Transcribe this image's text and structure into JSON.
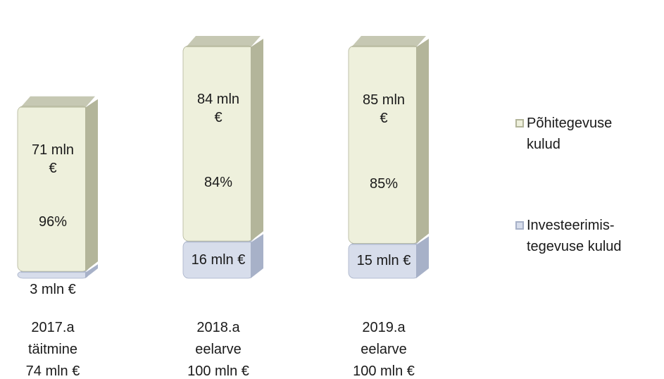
{
  "chart_data": {
    "type": "stacked_bar",
    "categories": [
      [
        "2017.a",
        "täitmine",
        "74 mln €"
      ],
      [
        "2018.a",
        "eelarve",
        "100 mln €"
      ],
      [
        "2019.a",
        "eelarve",
        "100 mln €"
      ]
    ],
    "series": [
      {
        "name": "Põhitegevuse kulud",
        "color": "#eef0dc",
        "side_color": "#b3b59a",
        "values": [
          71,
          84,
          85
        ],
        "value_labels": [
          "71 mln €",
          "84 mln €",
          "85 mln €"
        ],
        "share_labels": [
          "96%",
          "84%",
          "85%"
        ]
      },
      {
        "name": "Investeerimis- tegevuse kulud",
        "color": "#d7ddeb",
        "side_color": "#a7b1c8",
        "values": [
          3,
          16,
          15
        ],
        "value_labels": [
          "3 mln €",
          "16 mln €",
          "15 mln €"
        ]
      }
    ],
    "legend": "right"
  }
}
